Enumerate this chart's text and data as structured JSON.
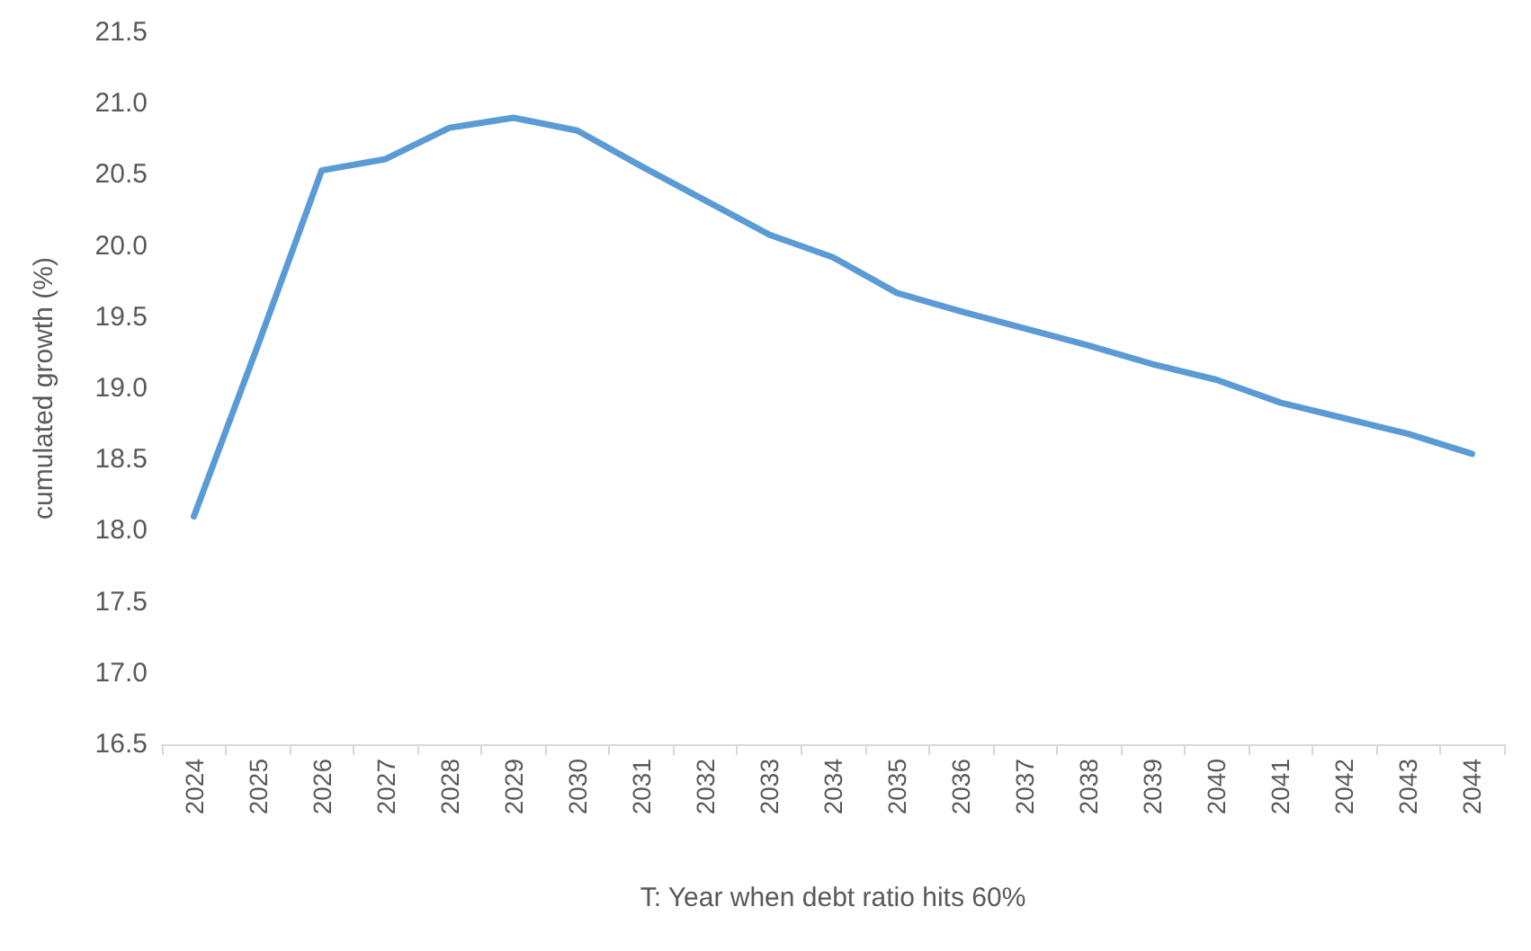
{
  "chart_data": {
    "type": "line",
    "xlabel": "T: Year when debt ratio hits 60%",
    "ylabel": "cumulated growth (%)",
    "categories": [
      "2024",
      "2025",
      "2026",
      "2027",
      "2028",
      "2029",
      "2030",
      "2031",
      "2032",
      "2033",
      "2034",
      "2035",
      "2036",
      "2037",
      "2038",
      "2039",
      "2040",
      "2041",
      "2042",
      "2043",
      "2044"
    ],
    "series": [
      {
        "color": "#5b9bd5",
        "values": [
          18.1,
          19.3,
          20.53,
          20.61,
          20.83,
          20.9,
          20.81,
          20.56,
          20.32,
          20.08,
          19.92,
          19.67,
          19.54,
          19.42,
          19.3,
          19.17,
          19.06,
          18.9,
          18.79,
          18.68,
          18.54
        ]
      }
    ],
    "ylim": [
      16.5,
      21.5
    ],
    "yticks": [
      16.5,
      {
        "value": 17,
        "label": "17.0"
      },
      17.5,
      {
        "value": 18,
        "label": "18.0"
      },
      18.5,
      {
        "value": 19,
        "label": "19.0"
      },
      19.5,
      {
        "value": 20,
        "label": "20.0"
      },
      20.5,
      {
        "value": 21,
        "label": "21.0"
      },
      21.5
    ],
    "grid": false,
    "marker": "none",
    "line_style": "solid"
  }
}
